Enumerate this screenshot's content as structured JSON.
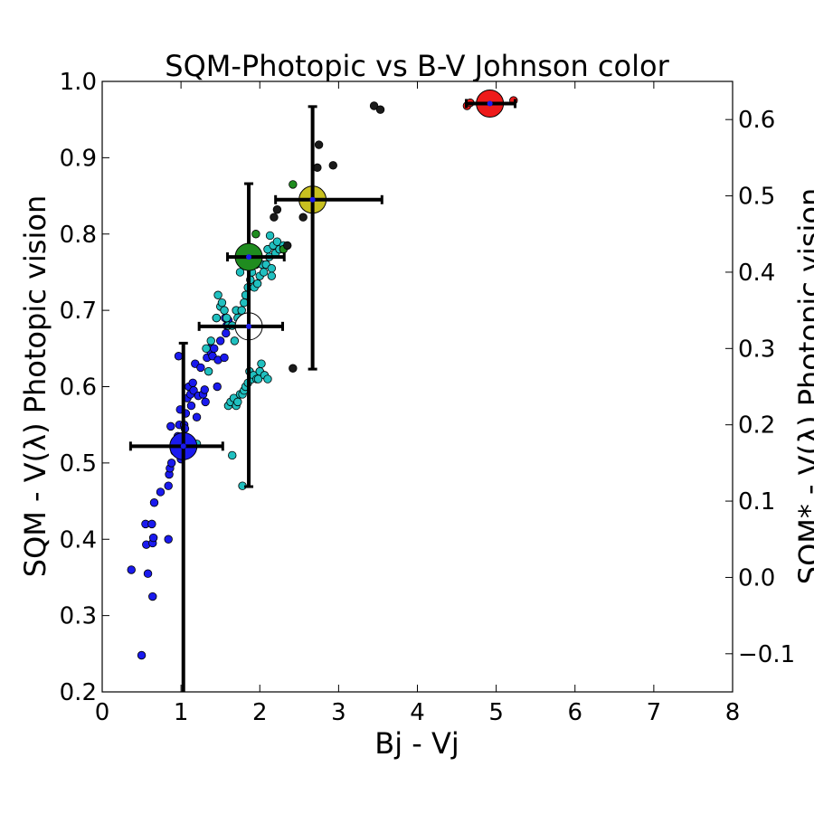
{
  "chart_data": {
    "type": "scatter",
    "title": "SQM-Photopic vs B-V Johnson color",
    "xlabel": "Bj - Vj",
    "ylabel": "SQM - V(λ) Photopic vision",
    "y2label": "SQM* - V(λ) Photopic vision",
    "xlim": [
      0,
      8
    ],
    "ylim": [
      0.2,
      1.0
    ],
    "y2lim": [
      -0.15,
      0.65
    ],
    "xticks": [
      "0",
      "1",
      "2",
      "3",
      "4",
      "5",
      "6",
      "7",
      "8"
    ],
    "yticks": [
      "0.2",
      "0.3",
      "0.4",
      "0.5",
      "0.6",
      "0.7",
      "0.8",
      "0.9",
      "1.0"
    ],
    "y2ticks": [
      "−0.1",
      "0.0",
      "0.1",
      "0.2",
      "0.3",
      "0.4",
      "0.5",
      "0.6"
    ],
    "grid": false,
    "legend": "none",
    "series": [
      {
        "color": "#1a1aee",
        "points": [
          [
            0.37,
            0.36
          ],
          [
            0.5,
            0.248
          ],
          [
            0.55,
            0.42
          ],
          [
            0.56,
            0.393
          ],
          [
            0.58,
            0.355
          ],
          [
            0.63,
            0.42
          ],
          [
            0.64,
            0.395
          ],
          [
            0.65,
            0.402
          ],
          [
            0.64,
            0.325
          ],
          [
            0.66,
            0.448
          ],
          [
            0.74,
            0.462
          ],
          [
            0.84,
            0.4
          ],
          [
            0.84,
            0.47
          ],
          [
            0.85,
            0.485
          ],
          [
            0.86,
            0.493
          ],
          [
            0.87,
            0.548
          ],
          [
            0.88,
            0.5
          ],
          [
            0.91,
            0.52
          ],
          [
            0.92,
            0.515
          ],
          [
            0.96,
            0.535
          ],
          [
            0.97,
            0.64
          ],
          [
            0.98,
            0.55
          ],
          [
            0.99,
            0.57
          ],
          [
            1.0,
            0.505
          ],
          [
            1.03,
            0.53
          ],
          [
            1.04,
            0.55
          ],
          [
            1.05,
            0.545
          ],
          [
            1.06,
            0.565
          ],
          [
            1.08,
            0.585
          ],
          [
            1.1,
            0.6
          ],
          [
            1.12,
            0.59
          ],
          [
            1.13,
            0.575
          ],
          [
            1.15,
            0.605
          ],
          [
            1.16,
            0.595
          ],
          [
            1.18,
            0.63
          ],
          [
            1.2,
            0.56
          ],
          [
            1.22,
            0.588
          ],
          [
            1.25,
            0.625
          ],
          [
            1.28,
            0.59
          ],
          [
            1.3,
            0.596
          ],
          [
            1.31,
            0.58
          ],
          [
            1.33,
            0.638
          ],
          [
            1.35,
            0.65
          ],
          [
            1.38,
            0.645
          ],
          [
            1.4,
            0.64
          ],
          [
            1.42,
            0.65
          ],
          [
            1.45,
            0.69
          ],
          [
            1.46,
            0.6
          ],
          [
            1.47,
            0.635
          ],
          [
            1.5,
            0.66
          ],
          [
            1.55,
            0.638
          ],
          [
            1.56,
            0.69
          ],
          [
            1.57,
            0.67
          ],
          [
            1.58,
            0.68
          ],
          [
            1.6,
            0.687
          ]
        ]
      },
      {
        "color": "#20c0c0",
        "points": [
          [
            1.2,
            0.525
          ],
          [
            1.32,
            0.65
          ],
          [
            1.35,
            0.62
          ],
          [
            1.38,
            0.66
          ],
          [
            1.45,
            0.69
          ],
          [
            1.47,
            0.72
          ],
          [
            1.5,
            0.705
          ],
          [
            1.52,
            0.71
          ],
          [
            1.55,
            0.7
          ],
          [
            1.58,
            0.69
          ],
          [
            1.6,
            0.575
          ],
          [
            1.6,
            0.68
          ],
          [
            1.63,
            0.58
          ],
          [
            1.65,
            0.51
          ],
          [
            1.65,
            0.68
          ],
          [
            1.67,
            0.585
          ],
          [
            1.68,
            0.66
          ],
          [
            1.7,
            0.575
          ],
          [
            1.7,
            0.7
          ],
          [
            1.72,
            0.69
          ],
          [
            1.72,
            0.58
          ],
          [
            1.75,
            0.75
          ],
          [
            1.75,
            0.59
          ],
          [
            1.77,
            0.7
          ],
          [
            1.78,
            0.47
          ],
          [
            1.78,
            0.59
          ],
          [
            1.8,
            0.71
          ],
          [
            1.8,
            0.595
          ],
          [
            1.82,
            0.72
          ],
          [
            1.82,
            0.6
          ],
          [
            1.85,
            0.73
          ],
          [
            1.85,
            0.605
          ],
          [
            1.87,
            0.62
          ],
          [
            1.88,
            0.74
          ],
          [
            1.9,
            0.61
          ],
          [
            1.9,
            0.75
          ],
          [
            1.92,
            0.615
          ],
          [
            1.93,
            0.73
          ],
          [
            1.95,
            0.76
          ],
          [
            1.96,
            0.61
          ],
          [
            1.97,
            0.735
          ],
          [
            1.98,
            0.61
          ],
          [
            2.0,
            0.62
          ],
          [
            2.0,
            0.745
          ],
          [
            2.02,
            0.63
          ],
          [
            2.03,
            0.76
          ],
          [
            2.05,
            0.75
          ],
          [
            2.06,
            0.615
          ],
          [
            2.08,
            0.76
          ],
          [
            2.1,
            0.61
          ],
          [
            2.1,
            0.78
          ],
          [
            2.12,
            0.77
          ],
          [
            2.13,
            0.798
          ],
          [
            2.15,
            0.755
          ],
          [
            2.15,
            0.745
          ],
          [
            2.17,
            0.785
          ],
          [
            2.2,
            0.775
          ],
          [
            2.22,
            0.79
          ],
          [
            2.25,
            0.78
          ],
          [
            2.3,
            0.785
          ]
        ]
      },
      {
        "color": "#1f8c1f",
        "points": [
          [
            1.95,
            0.8
          ],
          [
            2.3,
            0.78
          ],
          [
            2.42,
            0.865
          ]
        ]
      },
      {
        "color": "#1a1a1a",
        "points": [
          [
            2.18,
            0.822
          ],
          [
            2.22,
            0.832
          ],
          [
            2.35,
            0.785
          ],
          [
            2.42,
            0.624
          ],
          [
            2.55,
            0.822
          ],
          [
            2.7,
            0.84
          ],
          [
            2.73,
            0.887
          ],
          [
            2.75,
            0.917
          ],
          [
            2.93,
            0.89
          ],
          [
            3.45,
            0.968
          ],
          [
            3.53,
            0.963
          ]
        ]
      },
      {
        "color": "#ee1a1a",
        "points": [
          [
            4.63,
            0.968
          ],
          [
            4.67,
            0.972
          ],
          [
            5.22,
            0.975
          ]
        ]
      }
    ],
    "errorbars": [
      {
        "x": 1.03,
        "y": 0.522,
        "xerr": [
          0.67,
          0.5
        ],
        "yerr": [
          0.34,
          0.135
        ],
        "color": "#1a1aee"
      },
      {
        "x": 1.86,
        "y": 0.679,
        "xerr": [
          0.63,
          0.43
        ],
        "yerr": [
          0.21,
          0.187
        ],
        "color": "#ffffff"
      },
      {
        "x": 1.86,
        "y": 0.77,
        "xerr": [
          0.27,
          0.45
        ],
        "yerr": [
          0.0,
          0.0
        ],
        "color": "#1f8c1f"
      },
      {
        "x": 2.67,
        "y": 0.845,
        "xerr": [
          0.47,
          0.88
        ],
        "yerr": [
          0.222,
          0.122
        ],
        "color": "#c8c020"
      },
      {
        "x": 4.92,
        "y": 0.971,
        "xerr": [
          0.3,
          0.32
        ],
        "yerr": [
          0.0,
          0.0
        ],
        "color": "#ee1a1a"
      }
    ]
  }
}
